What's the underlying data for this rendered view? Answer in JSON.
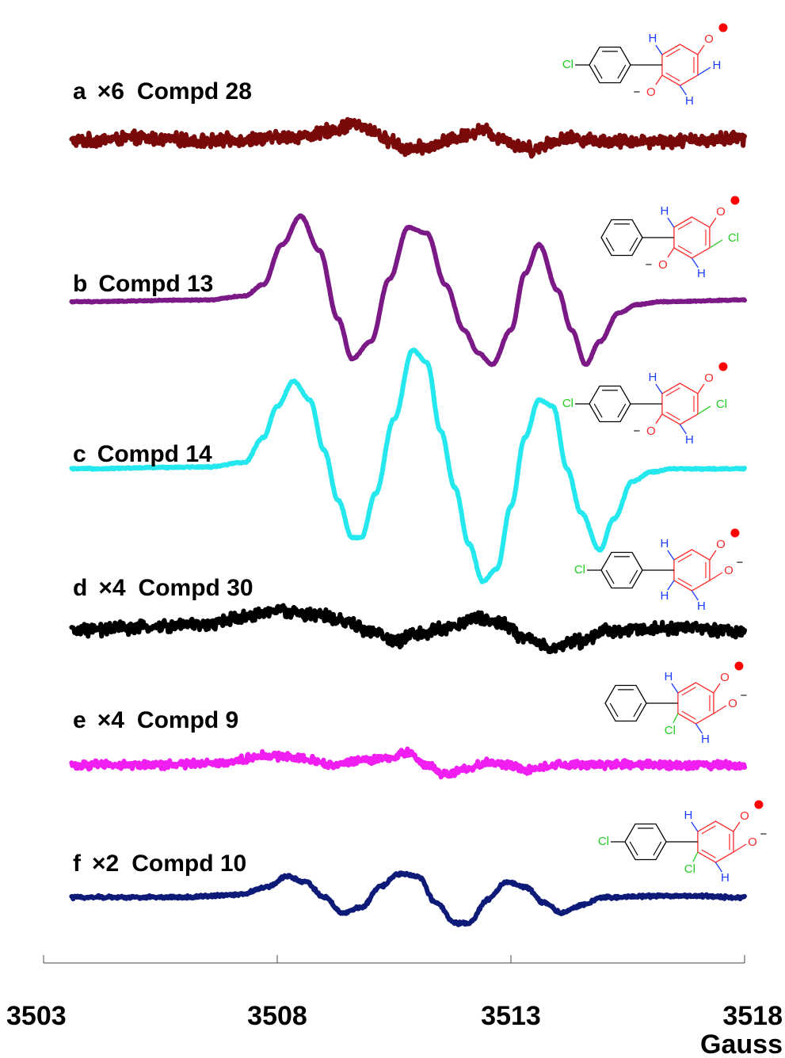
{
  "chart_data": {
    "type": "line",
    "xlabel": "Gauss",
    "xlim": [
      3503,
      3518
    ],
    "xticks": [
      3503,
      3508,
      3513,
      3518
    ],
    "xtick_labels": [
      "3503",
      "3508",
      "3513",
      "3518"
    ],
    "grid": false,
    "series": [
      {
        "letter": "a",
        "multiplier": "×6",
        "name": "Compd 28",
        "color": "#7a0a0a",
        "noise": 1.0,
        "points": [
          [
            3503.6,
            0
          ],
          [
            3505.0,
            0.5
          ],
          [
            3506.5,
            0
          ],
          [
            3507.8,
            0.5
          ],
          [
            3508.7,
            1
          ],
          [
            3509.2,
            2
          ],
          [
            3509.6,
            3
          ],
          [
            3510.0,
            2
          ],
          [
            3510.4,
            0
          ],
          [
            3510.8,
            -1.5
          ],
          [
            3511.3,
            -1
          ],
          [
            3511.8,
            0.5
          ],
          [
            3512.4,
            2
          ],
          [
            3512.8,
            0.5
          ],
          [
            3513.2,
            -1
          ],
          [
            3513.5,
            -1.5
          ],
          [
            3513.9,
            0
          ],
          [
            3514.3,
            0.5
          ],
          [
            3515.0,
            0
          ],
          [
            3516.5,
            0
          ],
          [
            3518.0,
            0.5
          ]
        ]
      },
      {
        "letter": "b",
        "multiplier": "",
        "name": "Compd 13",
        "color": "#7b1a86",
        "noise": 0.08,
        "points": [
          [
            3503.6,
            0
          ],
          [
            3506.5,
            0.3
          ],
          [
            3507.3,
            1
          ],
          [
            3507.7,
            3
          ],
          [
            3508.1,
            10
          ],
          [
            3508.5,
            15
          ],
          [
            3508.9,
            9
          ],
          [
            3509.3,
            -3
          ],
          [
            3509.6,
            -10
          ],
          [
            3510.0,
            -7
          ],
          [
            3510.4,
            4
          ],
          [
            3510.8,
            13
          ],
          [
            3511.2,
            12
          ],
          [
            3511.6,
            3
          ],
          [
            3512.0,
            -5
          ],
          [
            3512.3,
            -9
          ],
          [
            3512.6,
            -11
          ],
          [
            3513.0,
            -5
          ],
          [
            3513.3,
            5
          ],
          [
            3513.6,
            10
          ],
          [
            3514.0,
            2
          ],
          [
            3514.3,
            -5
          ],
          [
            3514.6,
            -11
          ],
          [
            3514.9,
            -7
          ],
          [
            3515.3,
            -2
          ],
          [
            3515.7,
            -0.5
          ],
          [
            3516.2,
            0
          ],
          [
            3518.0,
            0.3
          ]
        ]
      },
      {
        "letter": "c",
        "multiplier": "",
        "name": "Compd 14",
        "color": "#24e8ee",
        "noise": 0.1,
        "points": [
          [
            3503.6,
            0
          ],
          [
            3506.5,
            0.3
          ],
          [
            3507.3,
            1
          ],
          [
            3507.7,
            5
          ],
          [
            3508.0,
            10
          ],
          [
            3508.35,
            14
          ],
          [
            3508.7,
            11
          ],
          [
            3509.0,
            3
          ],
          [
            3509.3,
            -5
          ],
          [
            3509.6,
            -11
          ],
          [
            3509.8,
            -11
          ],
          [
            3510.1,
            -4
          ],
          [
            3510.5,
            8
          ],
          [
            3510.9,
            19
          ],
          [
            3511.2,
            17
          ],
          [
            3511.5,
            6
          ],
          [
            3511.8,
            -3
          ],
          [
            3512.1,
            -12
          ],
          [
            3512.4,
            -18
          ],
          [
            3512.7,
            -16
          ],
          [
            3513.0,
            -6
          ],
          [
            3513.3,
            5
          ],
          [
            3513.6,
            11
          ],
          [
            3513.9,
            10
          ],
          [
            3514.2,
            0
          ],
          [
            3514.5,
            -7
          ],
          [
            3514.9,
            -13
          ],
          [
            3515.2,
            -8
          ],
          [
            3515.6,
            -2
          ],
          [
            3516.0,
            -0.5
          ],
          [
            3516.5,
            0
          ],
          [
            3518.0,
            0
          ]
        ]
      },
      {
        "letter": "d",
        "multiplier": "×4",
        "name": "Compd 30",
        "color": "#000000",
        "noise": 0.8,
        "points": [
          [
            3503.6,
            0
          ],
          [
            3505.0,
            0.5
          ],
          [
            3506.5,
            1
          ],
          [
            3507.2,
            2
          ],
          [
            3508.0,
            3
          ],
          [
            3508.8,
            2.5
          ],
          [
            3509.4,
            1.5
          ],
          [
            3510.0,
            0
          ],
          [
            3510.5,
            -1.5
          ],
          [
            3511.0,
            -0.5
          ],
          [
            3511.6,
            0.5
          ],
          [
            3512.3,
            2
          ],
          [
            3512.8,
            1
          ],
          [
            3513.3,
            -1
          ],
          [
            3513.9,
            -2.5
          ],
          [
            3514.5,
            -1.5
          ],
          [
            3515.0,
            0
          ],
          [
            3516.5,
            0.5
          ],
          [
            3518.0,
            0
          ]
        ]
      },
      {
        "letter": "e",
        "multiplier": "×4",
        "name": "Compd 9",
        "color": "#f01ef0",
        "noise": 0.7,
        "points": [
          [
            3503.6,
            0
          ],
          [
            3505.5,
            0
          ],
          [
            3506.8,
            0.5
          ],
          [
            3507.8,
            2
          ],
          [
            3508.5,
            1.5
          ],
          [
            3509.2,
            0
          ],
          [
            3509.9,
            1
          ],
          [
            3510.4,
            1.5
          ],
          [
            3510.8,
            2.5
          ],
          [
            3511.2,
            0
          ],
          [
            3511.6,
            -2
          ],
          [
            3512.0,
            -1
          ],
          [
            3512.5,
            0.5
          ],
          [
            3513.0,
            0
          ],
          [
            3513.4,
            -1
          ],
          [
            3514.0,
            0
          ],
          [
            3515.5,
            0
          ],
          [
            3518.0,
            0
          ]
        ]
      },
      {
        "letter": "f",
        "multiplier": "×2",
        "name": "Compd 10",
        "color": "#0d1a78",
        "noise": 0.25,
        "points": [
          [
            3503.6,
            0
          ],
          [
            3506.0,
            0
          ],
          [
            3507.2,
            0.5
          ],
          [
            3507.8,
            2
          ],
          [
            3508.2,
            4
          ],
          [
            3508.6,
            3
          ],
          [
            3509.0,
            0
          ],
          [
            3509.4,
            -3
          ],
          [
            3509.8,
            -2
          ],
          [
            3510.2,
            2
          ],
          [
            3510.6,
            4.5
          ],
          [
            3511.0,
            4
          ],
          [
            3511.4,
            -1
          ],
          [
            3511.8,
            -5
          ],
          [
            3512.1,
            -5
          ],
          [
            3512.5,
            -0.5
          ],
          [
            3512.9,
            3
          ],
          [
            3513.3,
            2
          ],
          [
            3513.7,
            -1
          ],
          [
            3514.1,
            -3
          ],
          [
            3514.5,
            -1.5
          ],
          [
            3515.0,
            0
          ],
          [
            3516.5,
            0.3
          ],
          [
            3518.0,
            0
          ]
        ]
      }
    ]
  },
  "structure_text": {
    "cl": "Cl",
    "h": "H",
    "o_radical": "O",
    "o_minus_left": "−O",
    "o_minus_right": "O",
    "o_plain": "O",
    "minus": "−"
  }
}
